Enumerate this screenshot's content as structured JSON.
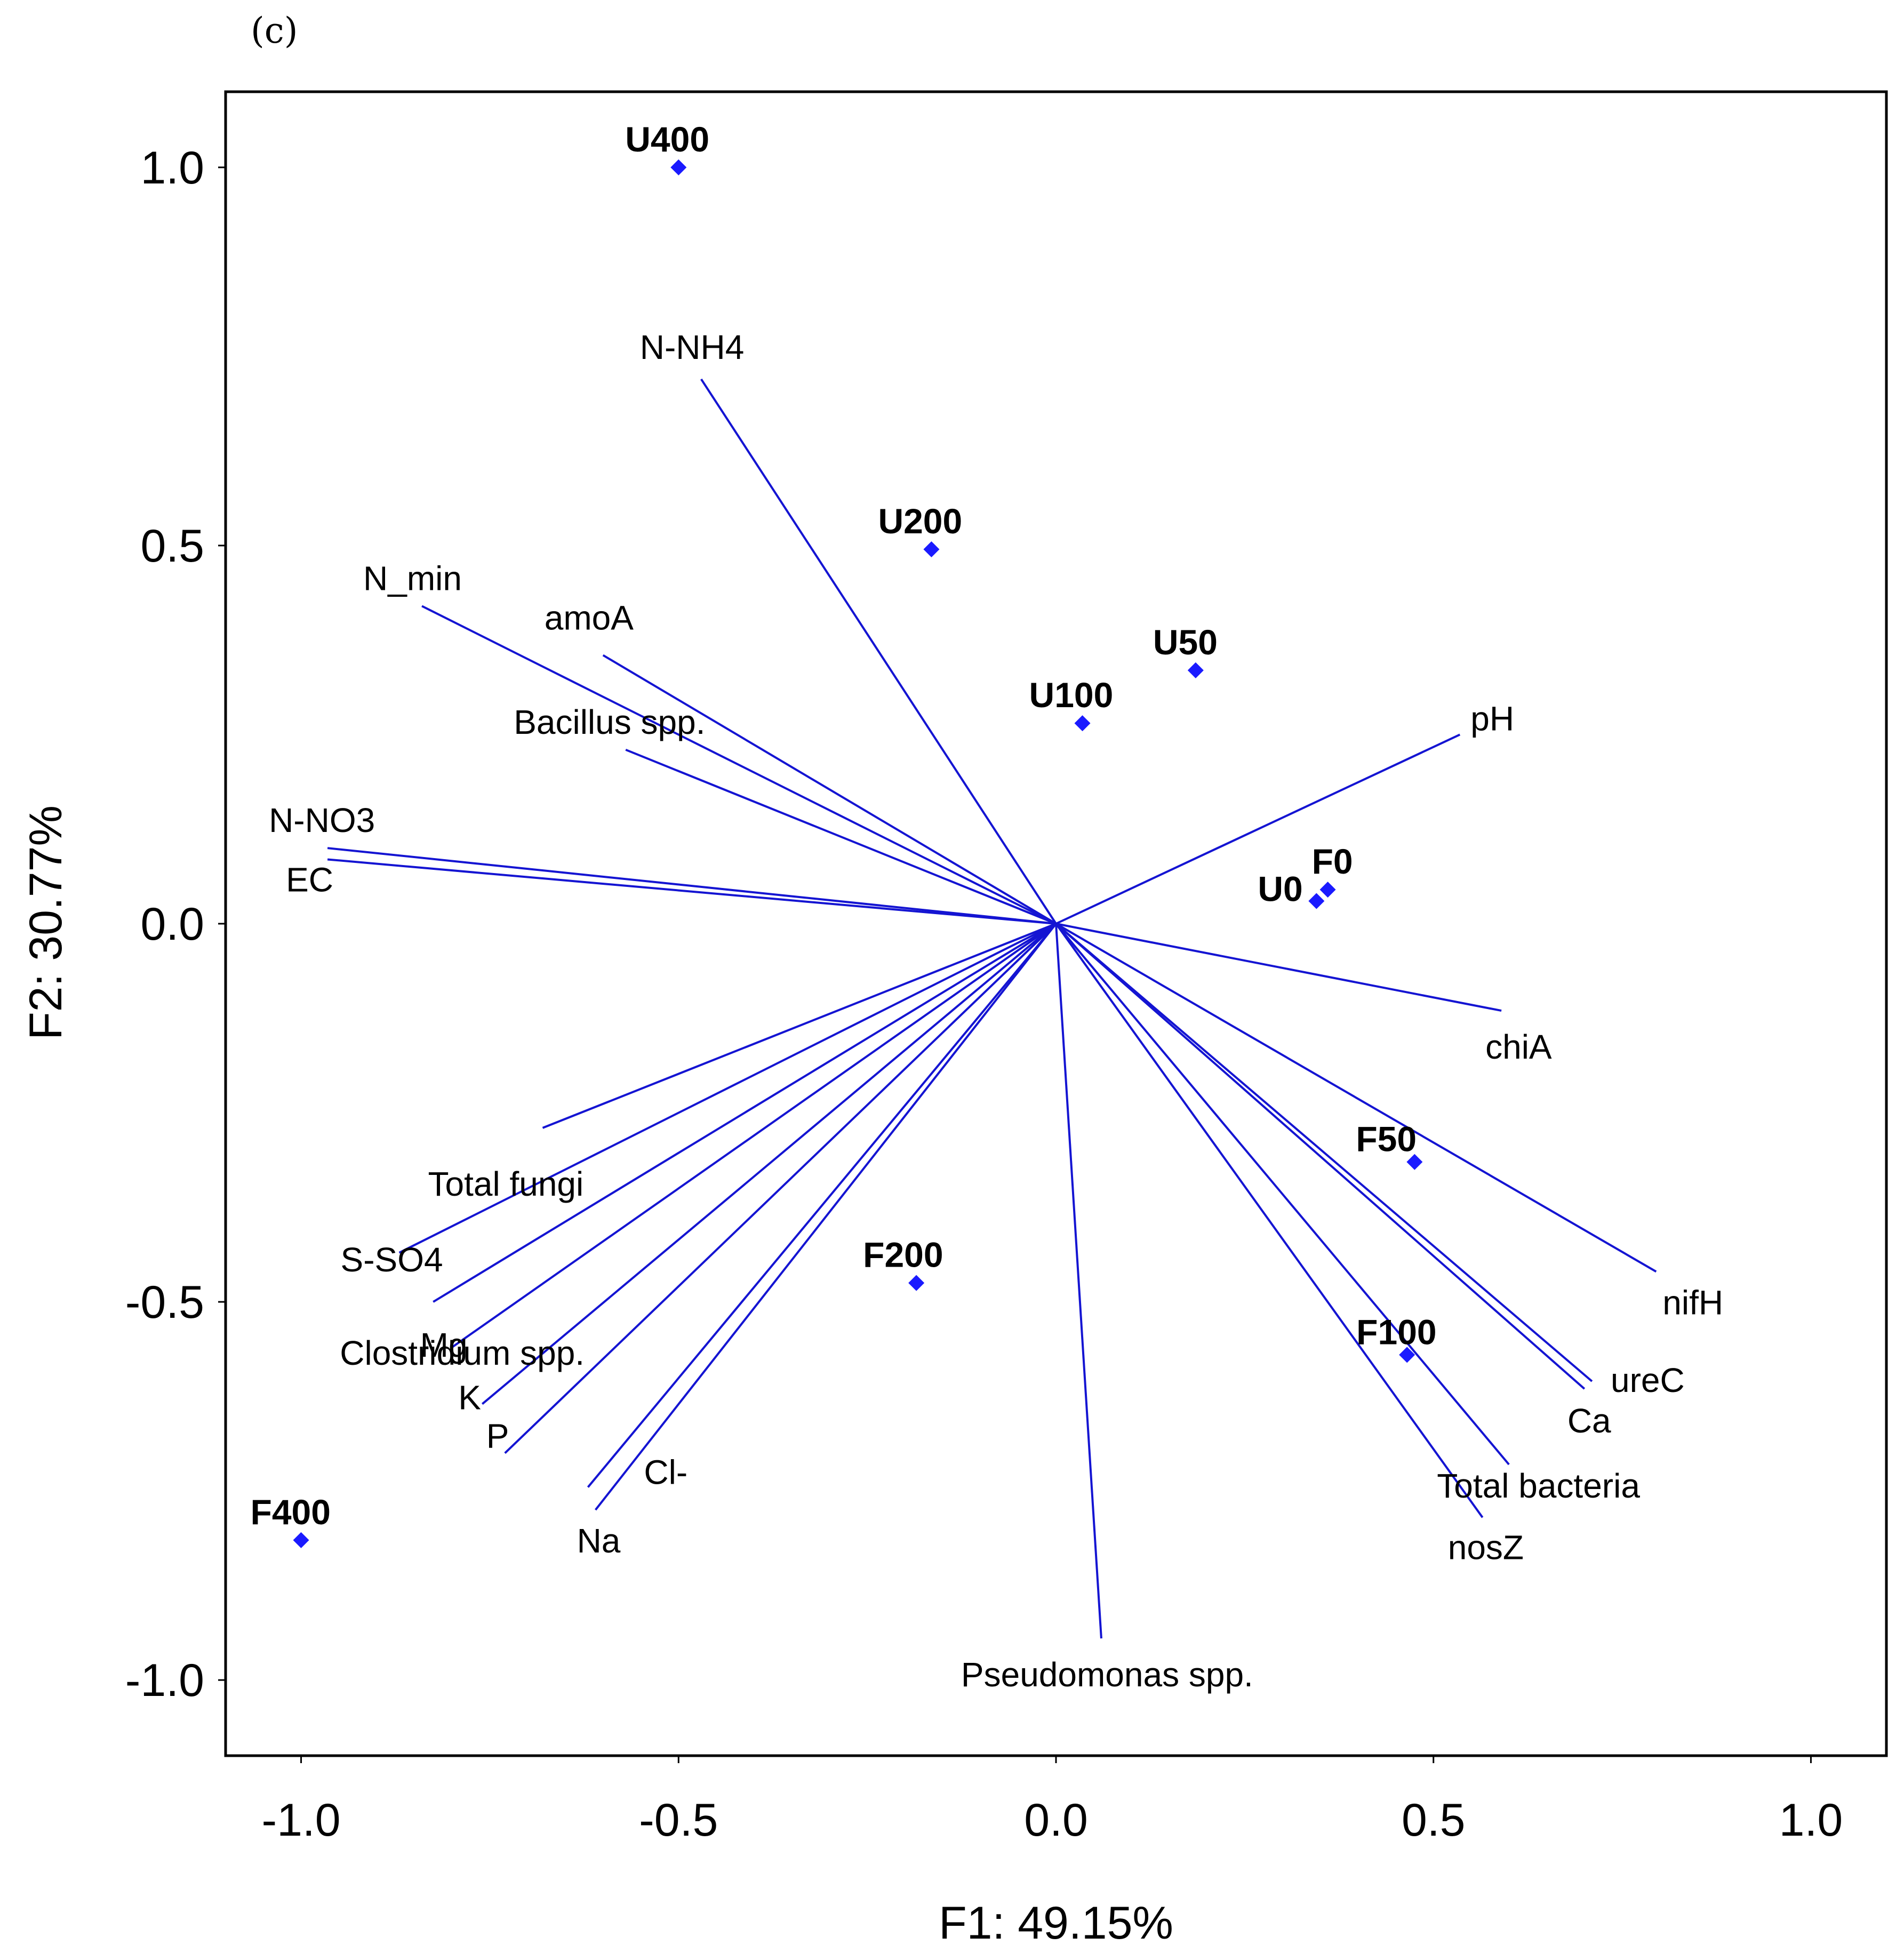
{
  "panel_label": "(c)",
  "chart_data": {
    "type": "biplot",
    "xlabel": "F1: 49.15%",
    "ylabel": "F2: 30.77%",
    "xlim": [
      -1.1,
      1.1
    ],
    "ylim": [
      -1.1,
      1.1
    ],
    "xticks": [
      -1.0,
      -0.5,
      0.0,
      0.5,
      1.0
    ],
    "xtick_labels": [
      "-1.0",
      "-0.5",
      "0.0",
      "0.5",
      "1.0"
    ],
    "yticks": [
      1.0,
      0.5,
      0.0,
      -0.5,
      -1.0
    ],
    "ytick_labels": [
      "1.0",
      "0.5",
      "0.0",
      "-0.5",
      "-1.0"
    ],
    "vector_color": "#1414d2",
    "point_color": "#1a1aff",
    "variables": [
      {
        "name": "N-NH4",
        "x": -0.47,
        "y": 0.72,
        "anchor": "start"
      },
      {
        "name": "N_min",
        "x": -0.84,
        "y": 0.42,
        "anchor": "start"
      },
      {
        "name": "amoA",
        "x": -0.6,
        "y": 0.355,
        "anchor": "start"
      },
      {
        "name": "Bacillus spp.",
        "x": -0.57,
        "y": 0.23,
        "anchor": "start"
      },
      {
        "name": "N-NO3",
        "x": -0.965,
        "y": 0.1,
        "anchor": "start"
      },
      {
        "name": "EC",
        "x": -0.965,
        "y": 0.085,
        "anchor": "start"
      },
      {
        "name": "pH",
        "x": 0.535,
        "y": 0.25,
        "anchor": "start"
      },
      {
        "name": "chiA",
        "x": 0.59,
        "y": -0.115,
        "anchor": "start"
      },
      {
        "name": "nifH",
        "x": 0.795,
        "y": -0.46,
        "anchor": "start"
      },
      {
        "name": "ureC",
        "x": 0.71,
        "y": -0.605,
        "anchor": "start"
      },
      {
        "name": "Ca",
        "x": 0.7,
        "y": -0.615,
        "anchor": "start"
      },
      {
        "name": "Total bacteria",
        "x": 0.6,
        "y": -0.715,
        "anchor": "start"
      },
      {
        "name": "nosZ",
        "x": 0.565,
        "y": -0.785,
        "anchor": "start"
      },
      {
        "name": "Pseudomonas spp.",
        "x": 0.06,
        "y": -0.945,
        "anchor": "start"
      },
      {
        "name": "Total fungi",
        "x": -0.68,
        "y": -0.27,
        "anchor": "start"
      },
      {
        "name": "S-SO4",
        "x": -0.87,
        "y": -0.435,
        "anchor": "start"
      },
      {
        "name": "Clostridium spp.",
        "x": -0.825,
        "y": -0.5,
        "anchor": "start"
      },
      {
        "name": "Mg",
        "x": -0.8,
        "y": -0.56,
        "anchor": "start"
      },
      {
        "name": "K",
        "x": -0.76,
        "y": -0.635,
        "anchor": "start"
      },
      {
        "name": "P",
        "x": -0.73,
        "y": -0.7,
        "anchor": "start"
      },
      {
        "name": "Cl-",
        "x": -0.62,
        "y": -0.745,
        "anchor": "start"
      },
      {
        "name": "Na",
        "x": -0.61,
        "y": -0.775,
        "anchor": "start"
      }
    ],
    "observations": [
      {
        "name": "U400",
        "x": -0.5,
        "y": 1.0
      },
      {
        "name": "U200",
        "x": -0.165,
        "y": 0.495
      },
      {
        "name": "U50",
        "x": 0.185,
        "y": 0.335
      },
      {
        "name": "U100",
        "x": 0.035,
        "y": 0.265
      },
      {
        "name": "F0",
        "x": 0.36,
        "y": 0.045
      },
      {
        "name": "U0",
        "x": 0.345,
        "y": 0.03
      },
      {
        "name": "F50",
        "x": 0.475,
        "y": -0.315
      },
      {
        "name": "F200",
        "x": -0.185,
        "y": -0.475
      },
      {
        "name": "F100",
        "x": 0.465,
        "y": -0.57
      },
      {
        "name": "F400",
        "x": -1.0,
        "y": -0.815
      }
    ]
  }
}
